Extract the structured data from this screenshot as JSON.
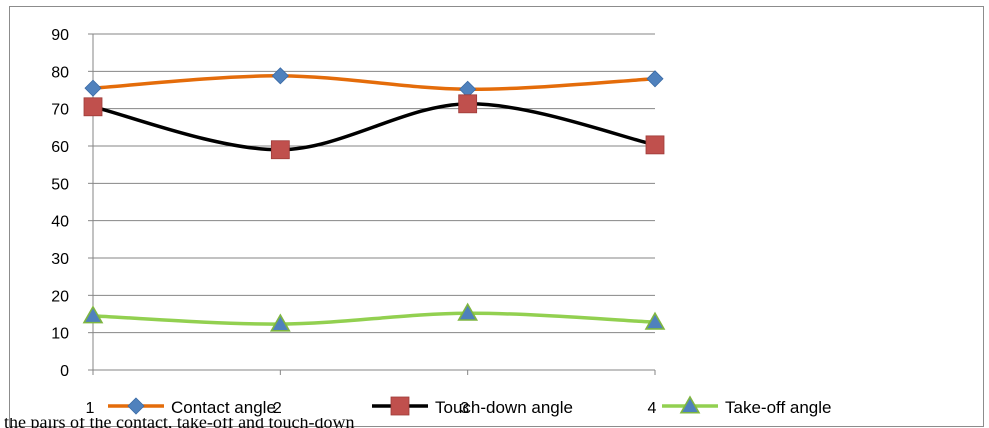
{
  "chart_data": {
    "type": "line",
    "title": "",
    "xlabel": "",
    "ylabel": "",
    "categories": [
      "1",
      "2",
      "3",
      "4"
    ],
    "ylim": [
      0,
      90
    ],
    "yticks": [
      "0",
      "10",
      "20",
      "30",
      "40",
      "50",
      "60",
      "70",
      "80",
      "90"
    ],
    "grid": true,
    "legend_position": "bottom",
    "series": [
      {
        "name": "Contact angle",
        "values": [
          75.5,
          78.8,
          75.2,
          78.0
        ],
        "color": "#e46c0a",
        "marker": "diamond",
        "marker_color": "#4f81bd"
      },
      {
        "name": "Touch-down angle",
        "values": [
          70.5,
          59.0,
          71.3,
          60.3
        ],
        "color": "#000000",
        "marker": "square",
        "marker_color": "#c0504d"
      },
      {
        "name": "Take-off angle",
        "values": [
          14.5,
          12.3,
          15.2,
          12.8
        ],
        "color": "#92d050",
        "marker": "triangle",
        "marker_color": "#4f81bd"
      }
    ]
  },
  "caption_fragment": "the pairs of the contact, take-off and touch-down"
}
